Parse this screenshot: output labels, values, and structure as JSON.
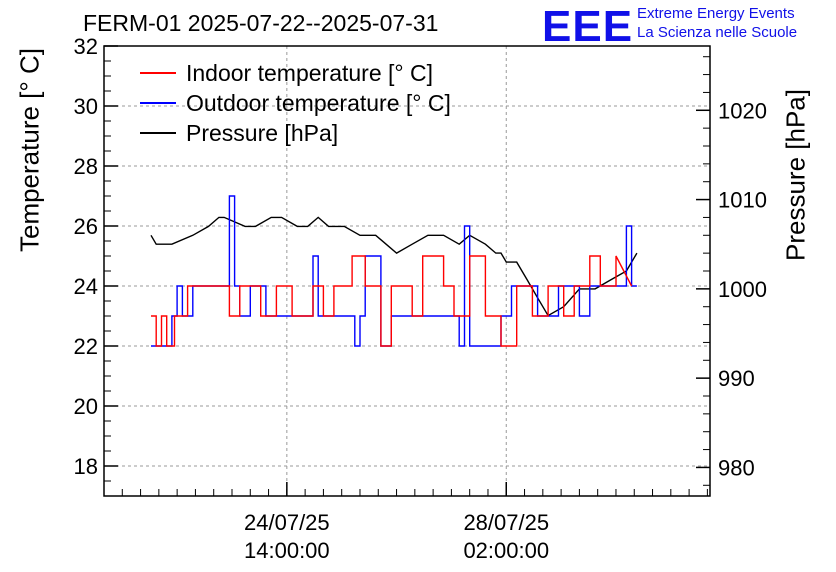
{
  "header": {
    "title": "FERM-01 2025-07-22--2025-07-31",
    "logo_text": "EEE",
    "brand_line1": "Extreme Energy Events",
    "brand_line2": "La Scienza nelle Scuole"
  },
  "colors": {
    "indoor": "#ff0000",
    "outdoor": "#0000ff",
    "pressure": "#000000",
    "logo": "#1010e8"
  },
  "chart_data": {
    "type": "line",
    "title": "FERM-01 2025-07-22--2025-07-31",
    "ylabel_left": "Temperature [° C]",
    "ylabel_right": "Pressure [hPa]",
    "ylim_left": [
      17,
      32
    ],
    "ylim_right": [
      976.8,
      1027.2
    ],
    "yticks_left": [
      18,
      20,
      22,
      24,
      26,
      28,
      30,
      32
    ],
    "yticks_right": [
      980,
      990,
      1000,
      1010,
      1020
    ],
    "grid": true,
    "legend_position": "top-left",
    "x_range_hours": [
      0,
      232
    ],
    "xticks": [
      {
        "x": 70,
        "line1": "24/07/25",
        "line2": "14:00:00"
      },
      {
        "x": 154,
        "line1": "28/07/25",
        "line2": "02:00:00"
      }
    ],
    "series": [
      {
        "name": "Indoor temperature [° C]",
        "axis": "left",
        "color": "#ff0000",
        "x": [
          18,
          20,
          20,
          22,
          22,
          24,
          24,
          27,
          27,
          32,
          32,
          48,
          48,
          52,
          52,
          60,
          60,
          66,
          66,
          72,
          72,
          80,
          80,
          84,
          84,
          88,
          88,
          95,
          95,
          100,
          100,
          106,
          106,
          110,
          110,
          118,
          118,
          122,
          122,
          130,
          130,
          134,
          134,
          140,
          140,
          146,
          146,
          152,
          152,
          158,
          158,
          164,
          164,
          170,
          170,
          176,
          176,
          180,
          180,
          186,
          186,
          190,
          190,
          196,
          196,
          202
        ],
        "y": [
          23,
          23,
          22,
          22,
          23,
          23,
          22,
          22,
          23,
          23,
          24,
          24,
          23,
          23,
          24,
          24,
          23,
          23,
          24,
          24,
          23,
          23,
          24,
          24,
          23,
          23,
          24,
          24,
          25,
          25,
          24,
          24,
          22,
          22,
          24,
          24,
          23,
          23,
          25,
          25,
          24,
          24,
          23,
          23,
          25,
          25,
          23,
          23,
          22,
          22,
          24,
          24,
          23,
          23,
          24,
          24,
          23,
          23,
          24,
          24,
          25,
          25,
          24,
          24,
          25,
          24
        ]
      },
      {
        "name": "Outdoor temperature [° C]",
        "axis": "left",
        "color": "#0000ff",
        "x": [
          18,
          26,
          26,
          28,
          28,
          30,
          30,
          34,
          34,
          48,
          48,
          50,
          50,
          52,
          52,
          56,
          56,
          62,
          62,
          80,
          80,
          82,
          82,
          96,
          96,
          98,
          98,
          100,
          100,
          106,
          106,
          110,
          110,
          118,
          118,
          136,
          136,
          138,
          138,
          140,
          140,
          152,
          152,
          156,
          156,
          166,
          166,
          174,
          174,
          182,
          182,
          186,
          186,
          200,
          200,
          202,
          202,
          204
        ],
        "y": [
          22,
          22,
          23,
          23,
          24,
          24,
          23,
          23,
          24,
          24,
          27,
          27,
          24,
          24,
          23,
          23,
          24,
          24,
          23,
          23,
          25,
          25,
          23,
          23,
          22,
          22,
          23,
          23,
          25,
          25,
          22,
          22,
          23,
          23,
          23,
          23,
          22,
          22,
          26,
          26,
          22,
          22,
          23,
          23,
          24,
          24,
          23,
          23,
          24,
          24,
          23,
          23,
          24,
          24,
          26,
          26,
          24,
          24
        ]
      },
      {
        "name": "Pressure [hPa]",
        "axis": "right",
        "color": "#000000",
        "x": [
          18,
          20,
          26,
          34,
          40,
          44,
          46,
          54,
          58,
          64,
          68,
          74,
          78,
          82,
          86,
          92,
          98,
          104,
          108,
          112,
          118,
          124,
          130,
          136,
          140,
          146,
          150,
          152,
          154,
          158,
          162,
          166,
          170,
          176,
          182,
          188,
          194,
          200,
          204
        ],
        "y": [
          1006,
          1005,
          1005,
          1006,
          1007,
          1008,
          1008,
          1007,
          1007,
          1008,
          1008,
          1007,
          1007,
          1008,
          1007,
          1007,
          1006,
          1006,
          1005,
          1004,
          1005,
          1006,
          1006,
          1005,
          1006,
          1005,
          1004,
          1004,
          1003,
          1003,
          1001,
          999,
          997,
          998,
          1000,
          1000,
          1001,
          1002,
          1004
        ]
      }
    ]
  }
}
